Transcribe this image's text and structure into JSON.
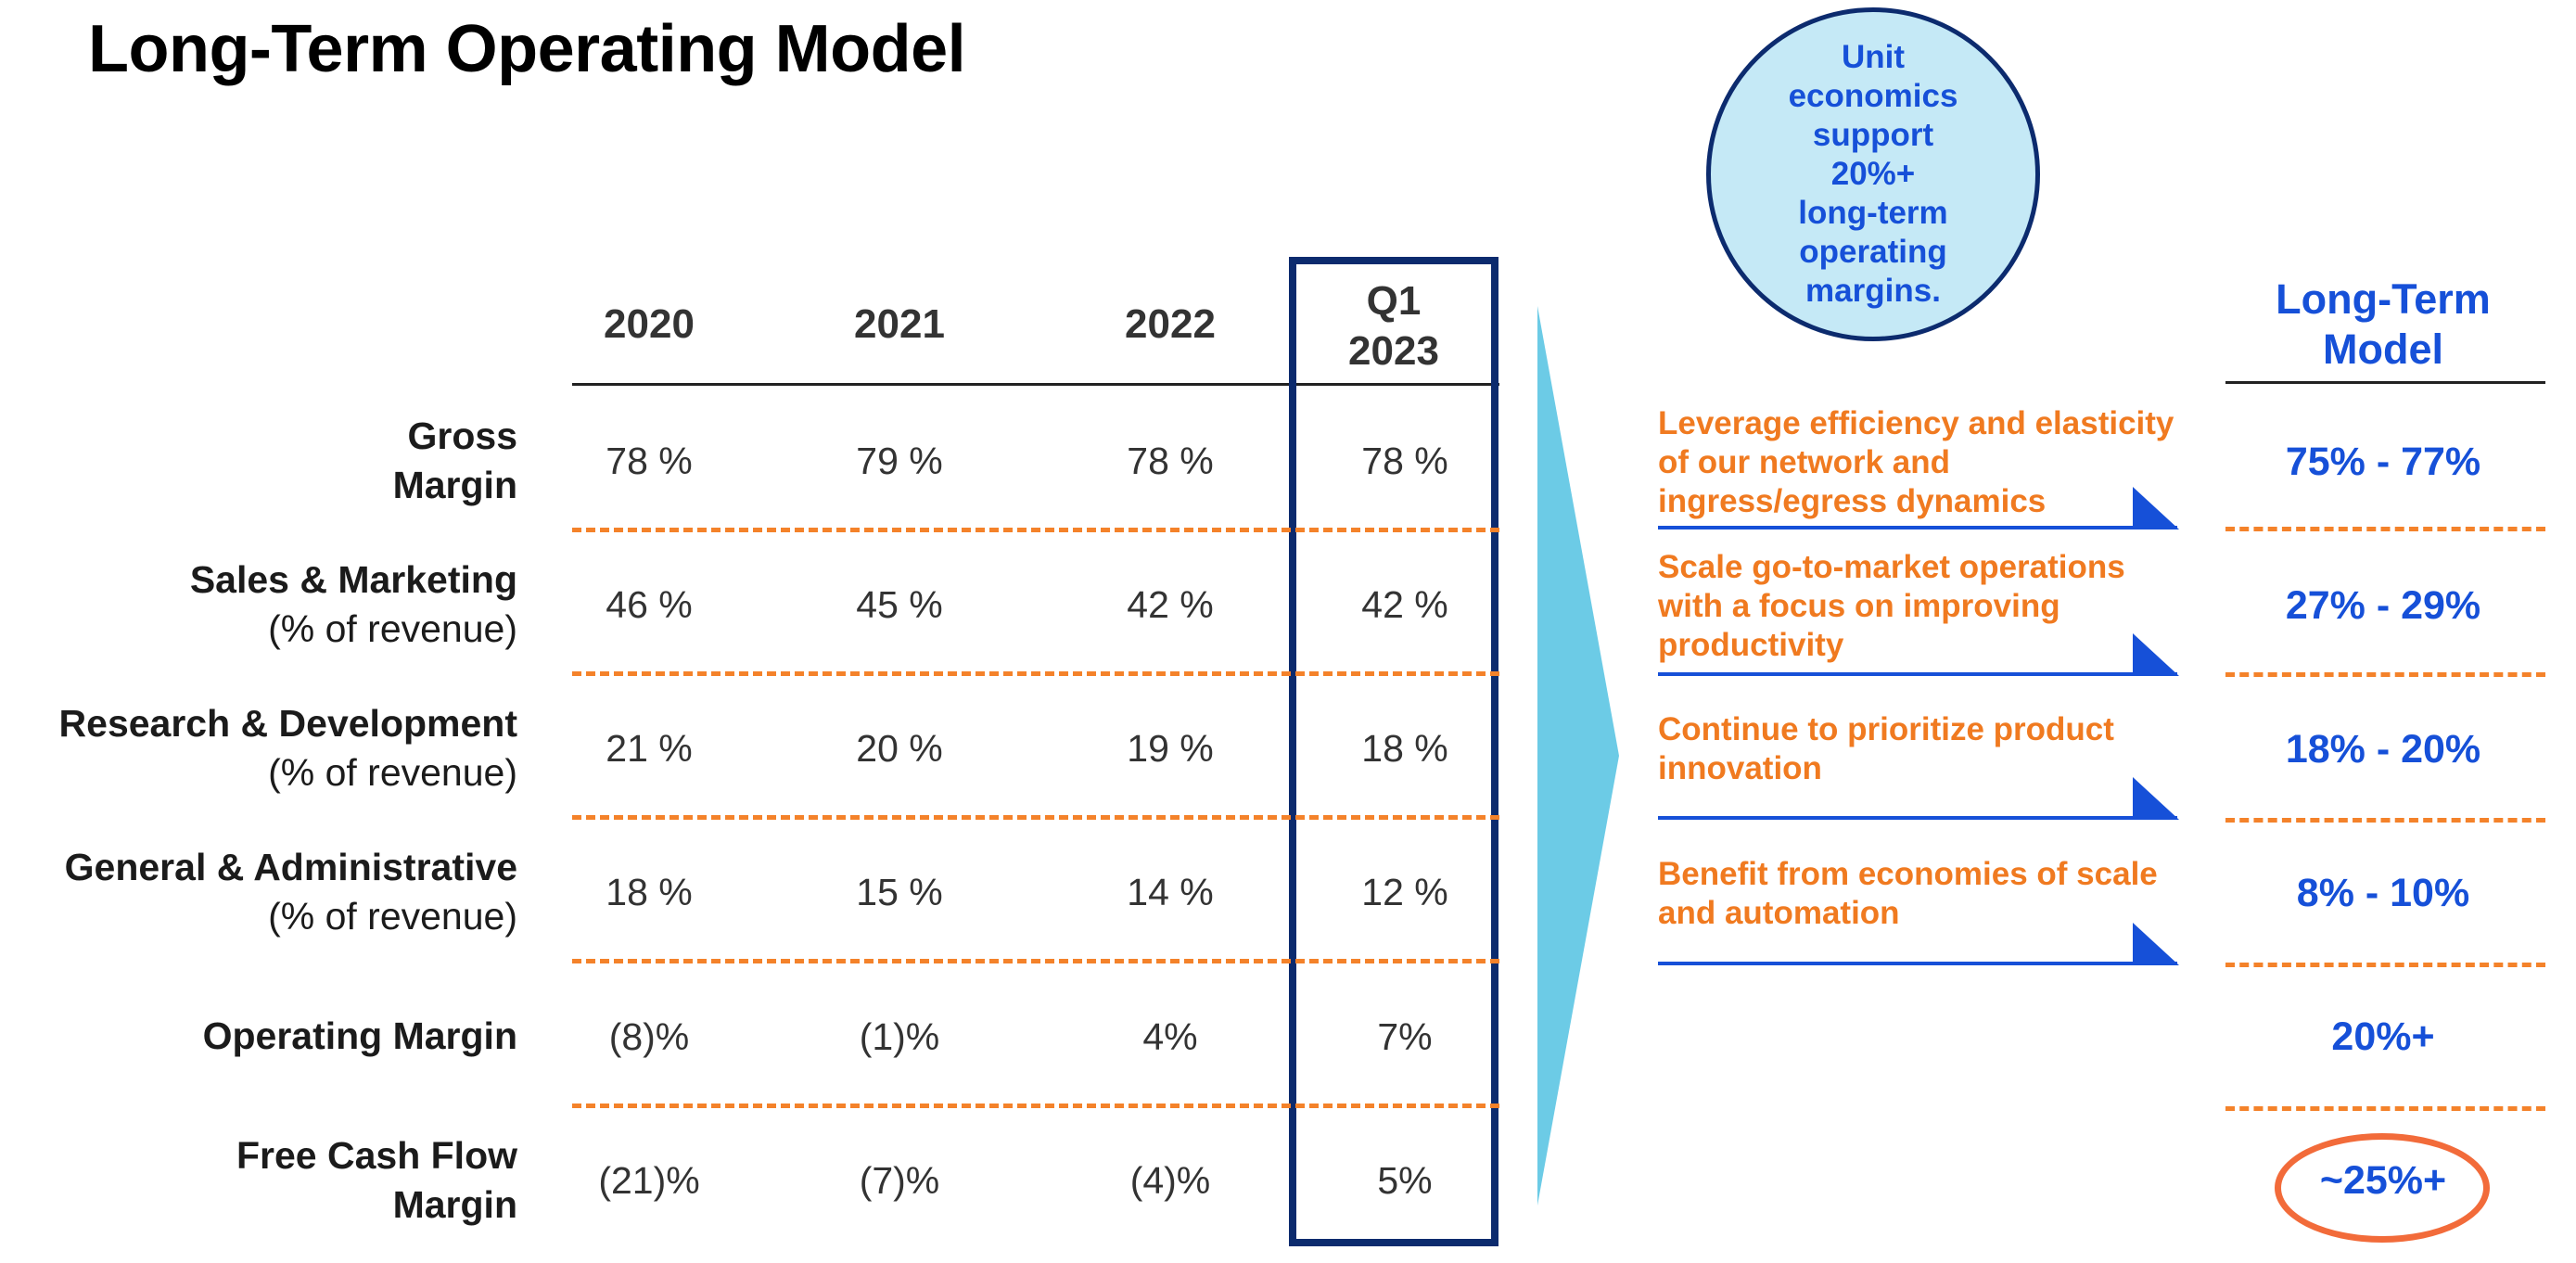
{
  "title": "Long-Term Operating Model",
  "columns": [
    "2020",
    "2021",
    "2022",
    "Q1\n2023"
  ],
  "rows": [
    {
      "label": "Gross",
      "label2": "Margin",
      "label2_bold": true,
      "values": [
        "78 %",
        "79 %",
        "78 %",
        "78 %"
      ]
    },
    {
      "label": "Sales & Marketing",
      "label2": "(% of revenue)",
      "label2_bold": false,
      "values": [
        "46 %",
        "45 %",
        "42 %",
        "42 %"
      ]
    },
    {
      "label": "Research & Development",
      "label2": "(% of revenue)",
      "label2_bold": false,
      "values": [
        "21 %",
        "20 %",
        "19 %",
        "18 %"
      ]
    },
    {
      "label": "General & Administrative",
      "label2": "(% of revenue)",
      "label2_bold": false,
      "values": [
        "18 %",
        "15 %",
        "14 %",
        "12 %"
      ]
    },
    {
      "label": "Operating Margin",
      "label2": "",
      "label2_bold": false,
      "values": [
        "(8)%",
        "(1)%",
        "4%",
        "7%"
      ]
    },
    {
      "label": "Free Cash Flow",
      "label2": "Margin",
      "label2_bold": true,
      "values": [
        "(21)%",
        "(7)%",
        "(4)%",
        "5%"
      ]
    }
  ],
  "bubble_text": "Unit\neconomics\nsupport\n20%+\nlong-term\noperating\nmargins.",
  "long_term_header": "Long-Term\nModel",
  "notes": [
    "Leverage efficiency and elasticity of our network and ingress/egress dynamics",
    "Scale go-to-market operations with a focus on improving productivity",
    "Continue to prioritize product innovation",
    "Benefit from economies of scale and automation"
  ],
  "targets": [
    "75% - 77%",
    "27% - 29%",
    "18% - 20%",
    "8% - 10%",
    "20%+",
    "~25%+"
  ],
  "colors": {
    "title": "#000000",
    "accent_blue": "#1650d8",
    "dark_navy": "#0c2b6e",
    "orange": "#f07a20",
    "arrow_cyan": "#6ccbe6",
    "bubble_fill": "#c5e9f6",
    "oval_outline": "#f26b3a"
  }
}
